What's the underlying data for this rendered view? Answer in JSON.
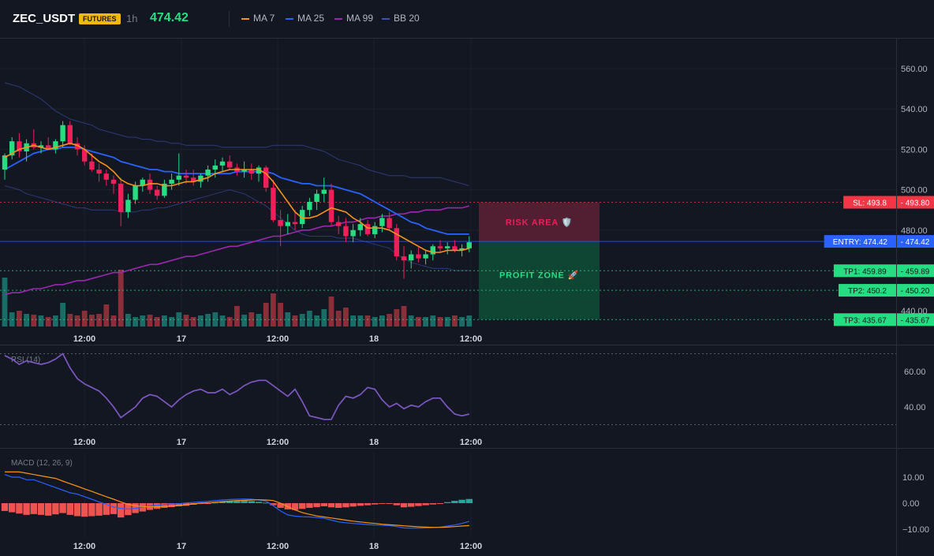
{
  "header": {
    "symbol": "ZEC_USDT",
    "badge": "FUTURES",
    "timeframe": "1h",
    "last_price": "474.42",
    "legend": [
      {
        "label": "MA 7",
        "color": "#f7931a"
      },
      {
        "label": "MA 25",
        "color": "#2962ff"
      },
      {
        "label": "MA 99",
        "color": "#9c27b0"
      },
      {
        "label": "BB 20",
        "color": "#3f51b5"
      }
    ]
  },
  "colors": {
    "up": "#26de81",
    "down": "#ef1f5a",
    "vol_up": "#1b6b66",
    "vol_down": "#8a2f3a",
    "rsi": "#7e57c2",
    "macd": "#2962ff",
    "signal": "#f7931a",
    "sl": "#f23645",
    "entry": "#2962ff",
    "tp": "#26de81"
  },
  "chart_data": [
    {
      "type": "candlestick",
      "title": "ZEC_USDT 1h",
      "x_ticks": [
        "12:00",
        "17",
        "12:00",
        "18",
        "12:00"
      ],
      "y_ticks": [
        "560.00",
        "540.00",
        "520.00",
        "500.00",
        "480.00",
        "440.00"
      ],
      "ylim": [
        435,
        570
      ],
      "candles": [
        [
          510,
          518,
          505,
          517
        ],
        [
          517,
          526,
          515,
          524
        ],
        [
          524,
          528,
          516,
          519
        ],
        [
          519,
          525,
          514,
          523
        ],
        [
          523,
          530,
          520,
          521
        ],
        [
          521,
          524,
          518,
          522
        ],
        [
          522,
          526,
          520,
          520
        ],
        [
          520,
          525,
          518,
          524
        ],
        [
          524,
          534,
          521,
          532
        ],
        [
          532,
          534,
          522,
          523
        ],
        [
          523,
          526,
          517,
          520
        ],
        [
          520,
          522,
          512,
          514
        ],
        [
          514,
          518,
          509,
          510
        ],
        [
          510,
          513,
          504,
          508
        ],
        [
          508,
          510,
          502,
          505
        ],
        [
          505,
          507,
          498,
          503
        ],
        [
          503,
          506,
          482,
          489
        ],
        [
          489,
          498,
          486,
          495
        ],
        [
          495,
          504,
          493,
          502
        ],
        [
          502,
          506,
          499,
          505
        ],
        [
          505,
          508,
          498,
          500
        ],
        [
          500,
          502,
          495,
          497
        ],
        [
          497,
          505,
          496,
          503
        ],
        [
          503,
          508,
          500,
          505
        ],
        [
          505,
          518,
          502,
          507
        ],
        [
          507,
          510,
          503,
          506
        ],
        [
          506,
          510,
          502,
          504
        ],
        [
          504,
          508,
          501,
          507
        ],
        [
          507,
          512,
          504,
          510
        ],
        [
          510,
          515,
          506,
          512
        ],
        [
          512,
          516,
          509,
          514
        ],
        [
          514,
          517,
          510,
          511
        ],
        [
          511,
          513,
          507,
          509
        ],
        [
          509,
          514,
          506,
          510
        ],
        [
          510,
          513,
          505,
          508
        ],
        [
          508,
          512,
          504,
          511
        ],
        [
          511,
          512,
          499,
          501
        ],
        [
          501,
          505,
          484,
          485
        ],
        [
          485,
          490,
          472,
          482
        ],
        [
          482,
          488,
          478,
          484
        ],
        [
          484,
          490,
          480,
          483
        ],
        [
          483,
          492,
          481,
          490
        ],
        [
          490,
          496,
          487,
          494
        ],
        [
          494,
          500,
          490,
          498
        ],
        [
          498,
          506,
          494,
          500
        ],
        [
          500,
          503,
          482,
          484
        ],
        [
          484,
          487,
          478,
          482
        ],
        [
          482,
          486,
          474,
          477
        ],
        [
          477,
          483,
          474,
          480
        ],
        [
          480,
          486,
          477,
          483
        ],
        [
          483,
          485,
          477,
          478
        ],
        [
          478,
          484,
          476,
          482
        ],
        [
          482,
          488,
          479,
          486
        ],
        [
          486,
          489,
          480,
          481
        ],
        [
          481,
          483,
          465,
          467
        ],
        [
          467,
          472,
          456,
          465
        ],
        [
          465,
          470,
          461,
          468
        ],
        [
          468,
          472,
          464,
          466
        ],
        [
          466,
          470,
          463,
          468
        ],
        [
          468,
          473,
          465,
          472
        ],
        [
          472,
          475,
          469,
          471
        ],
        [
          471,
          474,
          468,
          472
        ],
        [
          472,
          475,
          469,
          470
        ],
        [
          470,
          473,
          467,
          471
        ],
        [
          471,
          477,
          469,
          474
        ]
      ],
      "volume": [
        62,
        18,
        20,
        16,
        15,
        14,
        12,
        14,
        30,
        16,
        14,
        20,
        15,
        16,
        28,
        14,
        72,
        16,
        12,
        14,
        15,
        12,
        14,
        12,
        18,
        15,
        12,
        14,
        16,
        18,
        14,
        12,
        26,
        15,
        18,
        16,
        30,
        42,
        30,
        18,
        14,
        16,
        20,
        14,
        22,
        38,
        20,
        24,
        14,
        14,
        14,
        12,
        14,
        16,
        22,
        26,
        14,
        12,
        12,
        14,
        12,
        12,
        14,
        12,
        14
      ],
      "ma7": [
        516,
        518,
        520,
        521,
        522,
        521,
        520,
        521,
        522,
        523,
        522,
        520,
        517,
        514,
        512,
        509,
        505,
        503,
        502,
        502,
        503,
        503,
        502,
        502,
        503,
        504,
        504,
        505,
        506,
        508,
        509,
        510,
        510,
        510,
        510,
        510,
        508,
        504,
        499,
        494,
        489,
        486,
        486,
        487,
        489,
        491,
        490,
        489,
        486,
        484,
        481,
        481,
        481,
        480,
        478,
        476,
        474,
        472,
        470,
        469,
        469,
        470,
        470,
        470,
        471
      ],
      "ma25": [
        510,
        512,
        514,
        516,
        518,
        519,
        520,
        520,
        521,
        521,
        521,
        520,
        519,
        518,
        517,
        516,
        514,
        513,
        512,
        511,
        510,
        510,
        509,
        509,
        508,
        508,
        508,
        508,
        508,
        508,
        508,
        508,
        509,
        509,
        509,
        509,
        509,
        508,
        506,
        505,
        504,
        503,
        503,
        502,
        502,
        502,
        501,
        500,
        499,
        498,
        496,
        494,
        492,
        490,
        488,
        486,
        484,
        483,
        481,
        480,
        479,
        478,
        478,
        478,
        478
      ],
      "ma99": [
        448,
        449,
        449,
        450,
        451,
        451,
        452,
        453,
        453,
        454,
        455,
        455,
        456,
        457,
        458,
        459,
        459,
        460,
        461,
        462,
        463,
        463,
        464,
        465,
        466,
        467,
        467,
        468,
        469,
        470,
        471,
        472,
        472,
        473,
        474,
        475,
        476,
        477,
        477,
        478,
        479,
        480,
        480,
        481,
        482,
        482,
        483,
        484,
        484,
        485,
        486,
        486,
        487,
        487,
        488,
        488,
        489,
        489,
        490,
        490,
        490,
        491,
        491,
        491,
        492
      ],
      "bb_upper": [
        553,
        552,
        551,
        549,
        547,
        545,
        542,
        539,
        537,
        535,
        534,
        533,
        532,
        530,
        529,
        528,
        527,
        526,
        526,
        525,
        525,
        524,
        524,
        523,
        523,
        522,
        522,
        522,
        522,
        522,
        521,
        521,
        521,
        521,
        521,
        521,
        521,
        522,
        522,
        522,
        522,
        522,
        521,
        520,
        519,
        517,
        515,
        514,
        513,
        512,
        510,
        509,
        508,
        507,
        507,
        507,
        506,
        506,
        506,
        506,
        506,
        505,
        504,
        503,
        502
      ],
      "bb_lower": [
        502,
        501,
        500,
        498,
        497,
        496,
        495,
        494,
        493,
        492,
        491,
        491,
        490,
        490,
        490,
        490,
        489,
        489,
        489,
        490,
        490,
        491,
        491,
        492,
        493,
        494,
        495,
        496,
        497,
        498,
        499,
        500,
        499,
        498,
        496,
        494,
        492,
        489,
        486,
        483,
        480,
        478,
        477,
        477,
        477,
        477,
        476,
        476,
        476,
        475,
        474,
        473,
        472,
        471,
        468,
        466,
        464,
        463,
        462,
        461,
        461,
        461,
        460,
        460,
        460
      ],
      "levels": [
        {
          "label": "SL: 493.8",
          "price": "493.80",
          "value": 493.8,
          "kind": "sl"
        },
        {
          "label": "ENTRY: 474.42",
          "price": "474.42",
          "value": 474.42,
          "kind": "entry"
        },
        {
          "label": "TP1: 459.89",
          "price": "459.89",
          "value": 459.89,
          "kind": "tp"
        },
        {
          "label": "TP2: 450.2",
          "price": "450.20",
          "value": 450.2,
          "kind": "tp"
        },
        {
          "label": "TP3: 435.67",
          "price": "435.67",
          "value": 435.67,
          "kind": "tp"
        }
      ],
      "zones": {
        "risk_label": "RISK AREA 🛡️",
        "profit_label": "PROFIT ZONE 🚀"
      }
    },
    {
      "type": "line",
      "title": "RSI (14)",
      "y_ticks": [
        "60.00",
        "40.00"
      ],
      "ylim": [
        27,
        73
      ],
      "levels": [
        70,
        30
      ],
      "values": [
        69,
        67,
        64,
        66,
        65,
        64,
        65,
        67,
        70,
        62,
        56,
        53,
        51,
        49,
        45,
        40,
        34,
        37,
        40,
        45,
        47,
        46,
        43,
        40,
        44,
        47,
        49,
        50,
        48,
        48,
        50,
        47,
        49,
        52,
        54,
        55,
        55,
        52,
        49,
        46,
        50,
        43,
        35,
        34,
        33,
        33,
        41,
        46,
        45,
        47,
        51,
        50,
        44,
        40,
        42,
        39,
        41,
        40,
        43,
        45,
        45,
        40,
        36,
        35,
        36
      ]
    },
    {
      "type": "bar+line",
      "title": "MACD (12, 26, 9)",
      "y_ticks": [
        "10.00",
        "0.00",
        "−10.00"
      ],
      "ylim": [
        -13,
        15
      ],
      "histogram": [
        -3,
        -3.5,
        -4,
        -4.5,
        -4.2,
        -4.5,
        -4.8,
        -4.3,
        -3.8,
        -4.5,
        -5,
        -5.2,
        -5,
        -4.8,
        -4.5,
        -4.2,
        -5.5,
        -4.6,
        -3.8,
        -3.2,
        -2.6,
        -2.2,
        -1.8,
        -1.5,
        -1.2,
        -1,
        -0.6,
        -0.3,
        -0.2,
        0.2,
        0.6,
        0.8,
        1,
        1.2,
        0.8,
        0.5,
        0.2,
        -0.8,
        -1.8,
        -2.4,
        -2.6,
        -2.2,
        -1.8,
        -1.5,
        -1.2,
        -1.6,
        -1.8,
        -1.6,
        -1.3,
        -1,
        -0.8,
        -0.5,
        -0.3,
        -0.2,
        -0.8,
        -1.6,
        -1.4,
        -1.1,
        -0.8,
        -0.5,
        -0.2,
        0.4,
        0.9,
        1.3,
        1.6
      ],
      "macd": [
        11,
        10,
        10,
        9,
        9,
        8,
        7,
        6,
        5,
        4,
        3.5,
        2.5,
        1.5,
        0.5,
        -0.5,
        -1.5,
        -2,
        -2.2,
        -2,
        -1.5,
        -1,
        -0.8,
        -0.5,
        -0.3,
        -0.2,
        0.1,
        0.3,
        0.5,
        0.7,
        1,
        1.2,
        1.4,
        1.5,
        1.6,
        1.5,
        1.2,
        0.8,
        -1,
        -3,
        -4.5,
        -5,
        -5.2,
        -5.3,
        -5.5,
        -5.8,
        -6.5,
        -7.2,
        -7.5,
        -7.8,
        -8,
        -8.2,
        -8.4,
        -8.5,
        -8.6,
        -9,
        -9.5,
        -9.6,
        -9.6,
        -9.5,
        -9.4,
        -9.2,
        -8.8,
        -8.4,
        -7.8,
        -7
      ],
      "signal": [
        12,
        12,
        12,
        11.5,
        11,
        10.5,
        10,
        9.5,
        8.5,
        7.5,
        6.5,
        5.5,
        4.5,
        3.5,
        2.5,
        1.5,
        0.5,
        -0.5,
        -1,
        -1.3,
        -1.4,
        -1.4,
        -1.3,
        -1.1,
        -0.9,
        -0.6,
        -0.3,
        0,
        0.2,
        0.4,
        0.6,
        0.8,
        1,
        1.1,
        1.2,
        1.3,
        1.2,
        1,
        0,
        -1.3,
        -2.6,
        -3.6,
        -4.3,
        -4.9,
        -5.3,
        -5.7,
        -6.1,
        -6.5,
        -6.9,
        -7.2,
        -7.5,
        -7.8,
        -8.1,
        -8.3,
        -8.5,
        -8.7,
        -8.9,
        -9.1,
        -9.2,
        -9.3,
        -9.3,
        -9.2,
        -9,
        -8.8,
        -8.6
      ]
    }
  ]
}
